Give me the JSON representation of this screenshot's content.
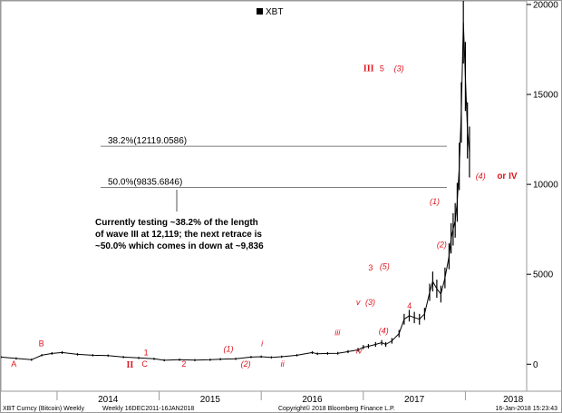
{
  "chart_data": {
    "type": "line",
    "legend": {
      "label": "XBT",
      "placement": "top-center"
    },
    "y_ticks": [
      "0",
      "5000",
      "10000",
      "15000",
      "20000"
    ],
    "ylim": [
      -1500,
      20200
    ],
    "x_ticks": [
      "2014",
      "2015",
      "2016",
      "2017",
      "2018"
    ],
    "x_years": [
      2014,
      2015,
      2016,
      2017,
      2018
    ],
    "xlim": [
      2013.45,
      2018.6
    ],
    "series": [
      {
        "x": [
          2013.45,
          2013.6,
          2013.75,
          2013.85,
          2013.95,
          2014.05,
          2014.2,
          2014.35,
          2014.5,
          2014.65,
          2014.8,
          2014.95,
          2015.05,
          2015.2,
          2015.35,
          2015.5,
          2015.6,
          2015.75,
          2015.9,
          2016.0,
          2016.1,
          2016.2,
          2016.35,
          2016.5,
          2016.55,
          2016.65,
          2016.75,
          2016.85,
          2016.95,
          2017.0,
          2017.05,
          2017.12,
          2017.18,
          2017.22,
          2017.28,
          2017.35,
          2017.4,
          2017.45,
          2017.5,
          2017.55,
          2017.6,
          2017.65,
          2017.68,
          2017.72,
          2017.76,
          2017.8,
          2017.84,
          2017.86,
          2017.88,
          2017.9,
          2017.92,
          2017.94,
          2017.96,
          2017.98,
          2018.0,
          2018.02,
          2018.04
        ],
        "values": [
          400,
          320,
          250,
          500,
          600,
          650,
          550,
          500,
          480,
          400,
          350,
          300,
          220,
          250,
          230,
          250,
          280,
          300,
          400,
          420,
          380,
          420,
          500,
          650,
          580,
          600,
          610,
          700,
          800,
          950,
          1000,
          1100,
          1200,
          1100,
          1300,
          1700,
          2500,
          2700,
          2600,
          2500,
          2800,
          4000,
          4600,
          4200,
          3900,
          4800,
          6000,
          7000,
          7500,
          8000,
          9000,
          11000,
          14000,
          19000,
          16000,
          13000,
          11800
        ]
      }
    ],
    "fib_levels": [
      {
        "label": "38.2%(12119.0586)",
        "value": 12119.0586
      },
      {
        "label": "50.0%(9835.6846)",
        "value": 9835.6846
      }
    ],
    "wave_labels": [
      {
        "text": "A",
        "x": 2013.55,
        "y": -150,
        "style": "up"
      },
      {
        "text": "B",
        "x": 2013.82,
        "y": 1000,
        "style": "up"
      },
      {
        "text": "II",
        "x": 2014.68,
        "y": -200,
        "style": "big"
      },
      {
        "text": "C",
        "x": 2014.83,
        "y": -150,
        "style": "up"
      },
      {
        "text": "1",
        "x": 2014.85,
        "y": 500,
        "style": "up"
      },
      {
        "text": "2",
        "x": 2015.22,
        "y": -150,
        "style": "up"
      },
      {
        "text": "(1)",
        "x": 2015.63,
        "y": 700,
        "style": "italic"
      },
      {
        "text": "(2)",
        "x": 2015.8,
        "y": -150,
        "style": "italic"
      },
      {
        "text": "i",
        "x": 2016.0,
        "y": 1000,
        "style": "italic"
      },
      {
        "text": "ii",
        "x": 2016.19,
        "y": -150,
        "style": "italic"
      },
      {
        "text": "iii",
        "x": 2016.72,
        "y": 1600,
        "style": "italic"
      },
      {
        "text": "iv",
        "x": 2016.93,
        "y": 600,
        "style": "italic"
      },
      {
        "text": "v",
        "x": 2016.93,
        "y": 3300,
        "style": "italic"
      },
      {
        "text": "(3)",
        "x": 2017.02,
        "y": 3300,
        "style": "italic"
      },
      {
        "text": "(4)",
        "x": 2017.15,
        "y": 1700,
        "style": "italic"
      },
      {
        "text": "3",
        "x": 2017.05,
        "y": 5200,
        "style": "up"
      },
      {
        "text": "(5)",
        "x": 2017.16,
        "y": 5300,
        "style": "italic"
      },
      {
        "text": "4",
        "x": 2017.43,
        "y": 3100,
        "style": "up"
      },
      {
        "text": "(2)",
        "x": 2017.72,
        "y": 6500,
        "style": "italic"
      },
      {
        "text": "(1)",
        "x": 2017.65,
        "y": 8900,
        "style": "italic"
      },
      {
        "text": "(4)",
        "x": 2018.1,
        "y": 10300,
        "style": "italic"
      },
      {
        "text": "or IV",
        "x": 2018.31,
        "y": 10300,
        "style": "orv"
      },
      {
        "text": "III",
        "x": 2017.0,
        "y": 16300,
        "style": "big"
      },
      {
        "text": "5",
        "x": 2017.16,
        "y": 16300,
        "style": "up"
      },
      {
        "text": "(3)",
        "x": 2017.3,
        "y": 16300,
        "style": "italic"
      }
    ],
    "annotation": {
      "lines": [
        "Currently testing ~38.2% of  the length",
        "of wave III at 12,119; the next retrace is",
        "~50.0% which comes in down at ~9,836"
      ]
    }
  },
  "footer": {
    "left": "XBT Curncy (Bitcoin) Weekly",
    "range": "Weekly 16DEC2011-16JAN2018",
    "copyright": "Copyright© 2018 Bloomberg Finance L.P.",
    "timestamp": "16-Jan-2018 15:23:43"
  },
  "colors": {
    "price": "#000000",
    "wave_labels": "#e0141e",
    "fib_lines": "#555555"
  }
}
